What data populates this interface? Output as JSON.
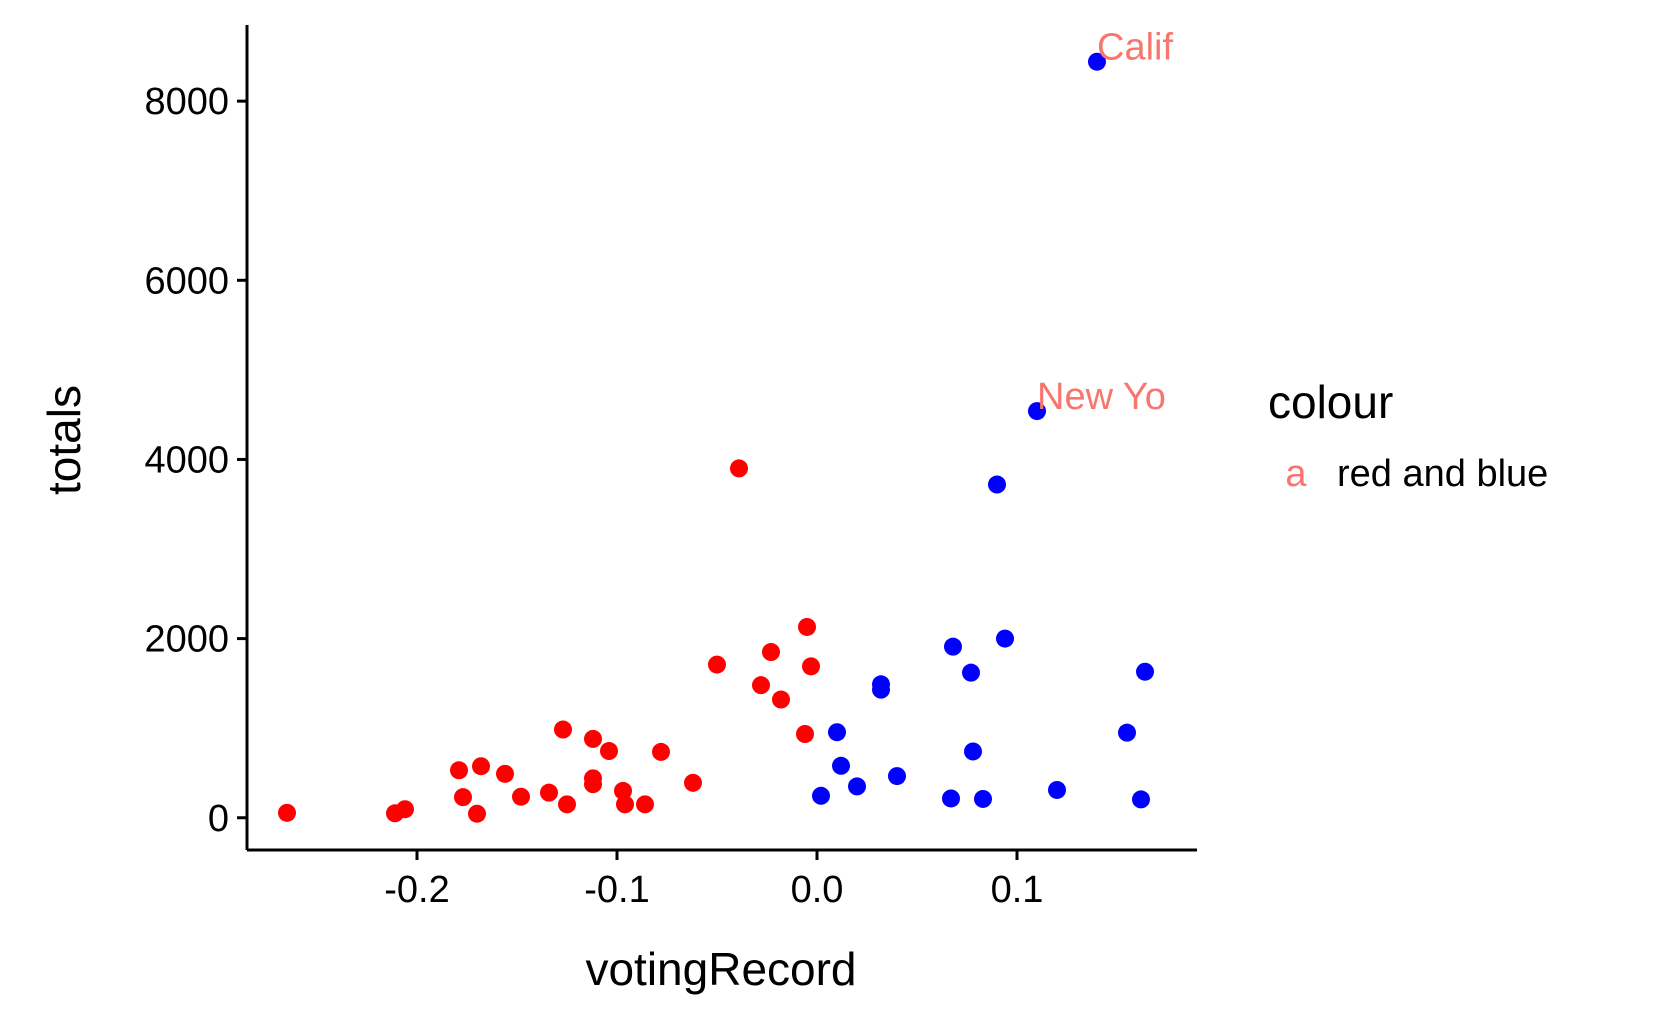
{
  "chart_data": {
    "type": "scatter",
    "xlabel": "votingRecord",
    "ylabel": "totals",
    "xlim": [
      -0.285,
      0.19
    ],
    "ylim": [
      -360,
      8850
    ],
    "x_ticks": [
      -0.2,
      -0.1,
      0.0,
      0.1
    ],
    "x_tick_labels": [
      "-0.2",
      "-0.1",
      "0.0",
      "0.1"
    ],
    "y_ticks": [
      0,
      2000,
      4000,
      6000,
      8000
    ],
    "y_tick_labels": [
      "0",
      "2000",
      "4000",
      "6000",
      "8000"
    ],
    "grid": false,
    "legend": {
      "title": "colour",
      "placement": "right",
      "entries": [
        {
          "key": "a",
          "label": "red and blue",
          "color": "#F8766D"
        }
      ]
    },
    "colors": {
      "red": "#FF0000",
      "blue": "#0000FF",
      "label": "#F8766D"
    },
    "series": [
      {
        "color": "red",
        "points": [
          [
            -0.265,
            55
          ],
          [
            -0.211,
            50
          ],
          [
            -0.206,
            95
          ],
          [
            -0.179,
            530
          ],
          [
            -0.177,
            230
          ],
          [
            -0.17,
            45
          ],
          [
            -0.168,
            575
          ],
          [
            -0.156,
            490
          ],
          [
            -0.148,
            235
          ],
          [
            -0.134,
            280
          ],
          [
            -0.127,
            985
          ],
          [
            -0.125,
            150
          ],
          [
            -0.112,
            880
          ],
          [
            -0.112,
            440
          ],
          [
            -0.112,
            375
          ],
          [
            -0.104,
            745
          ],
          [
            -0.097,
            300
          ],
          [
            -0.096,
            150
          ],
          [
            -0.086,
            150
          ],
          [
            -0.078,
            735
          ],
          [
            -0.062,
            390
          ],
          [
            -0.05,
            1710
          ],
          [
            -0.039,
            3900
          ],
          [
            -0.028,
            1480
          ],
          [
            -0.023,
            1850
          ],
          [
            -0.018,
            1320
          ],
          [
            -0.006,
            935
          ],
          [
            -0.005,
            2130
          ],
          [
            -0.003,
            1690
          ]
        ]
      },
      {
        "color": "blue",
        "points": [
          [
            0.002,
            245
          ],
          [
            0.01,
            955
          ],
          [
            0.012,
            580
          ],
          [
            0.02,
            350
          ],
          [
            0.032,
            1490
          ],
          [
            0.032,
            1430
          ],
          [
            0.04,
            465
          ],
          [
            0.067,
            215
          ],
          [
            0.068,
            1910
          ],
          [
            0.077,
            1620
          ],
          [
            0.078,
            740
          ],
          [
            0.083,
            210
          ],
          [
            0.09,
            3720
          ],
          [
            0.094,
            2000
          ],
          [
            0.11,
            4540
          ],
          [
            0.12,
            310
          ],
          [
            0.14,
            8440
          ],
          [
            0.155,
            950
          ],
          [
            0.162,
            205
          ],
          [
            0.164,
            1630
          ]
        ]
      }
    ],
    "annotations": [
      {
        "text": "Calif",
        "x": 0.14,
        "y": 8440
      },
      {
        "text": "New Yo",
        "x": 0.11,
        "y": 4540
      }
    ]
  }
}
